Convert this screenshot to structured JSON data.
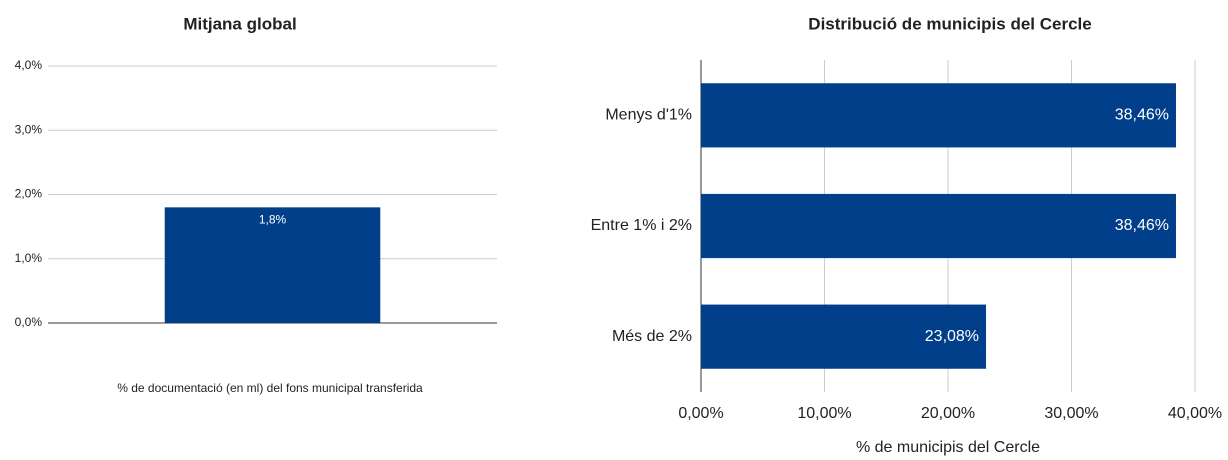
{
  "chart_data": [
    {
      "type": "bar",
      "title": "Mitjana global",
      "x_label": "% de documentació (en ml) del fons municipal transferida",
      "categories": [
        null
      ],
      "values": [
        1.8
      ],
      "value_labels": [
        "1,8%"
      ],
      "color": "#023f8a",
      "ylim": [
        0,
        4
      ],
      "yticks": [
        {
          "value": 0,
          "label": "0,0%"
        },
        {
          "value": 1,
          "label": "1,0%"
        },
        {
          "value": 2,
          "label": "2,0%"
        },
        {
          "value": 3,
          "label": "3,0%"
        },
        {
          "value": 4,
          "label": "4,0%"
        }
      ],
      "grid": true
    },
    {
      "type": "hbar",
      "title": "Distribució de municipis del Cercle",
      "x_label": "% de municipis del Cercle",
      "categories": [
        "Menys d'1%",
        "Entre 1% i 2%",
        "Més de 2%"
      ],
      "values": [
        38.46,
        38.46,
        23.08
      ],
      "value_labels": [
        "38,46%",
        "38,46%",
        "23,08%"
      ],
      "color": "#023f8a",
      "xlim": [
        0,
        40
      ],
      "xticks": [
        {
          "value": 0,
          "label": "0,00%"
        },
        {
          "value": 10,
          "label": "10,00%"
        },
        {
          "value": 20,
          "label": "20,00%"
        },
        {
          "value": 30,
          "label": "30,00%"
        },
        {
          "value": 40,
          "label": "40,00%"
        }
      ],
      "grid": true
    }
  ]
}
